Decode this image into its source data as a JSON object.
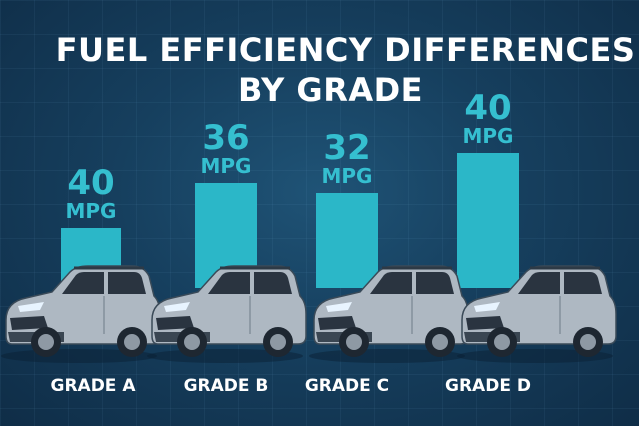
{
  "chart_data": {
    "type": "bar",
    "title_lines": [
      "FUEL EFFICIENCY DIFFERENCES",
      "BY GRADE"
    ],
    "categories": [
      "GRADE A",
      "GRADE B",
      "GRADE C",
      "GRADE D"
    ],
    "values": [
      40,
      36,
      32,
      40
    ],
    "value_labels": [
      "40",
      "36",
      "32",
      "40"
    ],
    "unit": "MPG",
    "xlabel": "",
    "ylabel": "",
    "colors": {
      "bar": "#2bb7c8",
      "label": "#35bfd0",
      "background": "#163f5e"
    }
  }
}
